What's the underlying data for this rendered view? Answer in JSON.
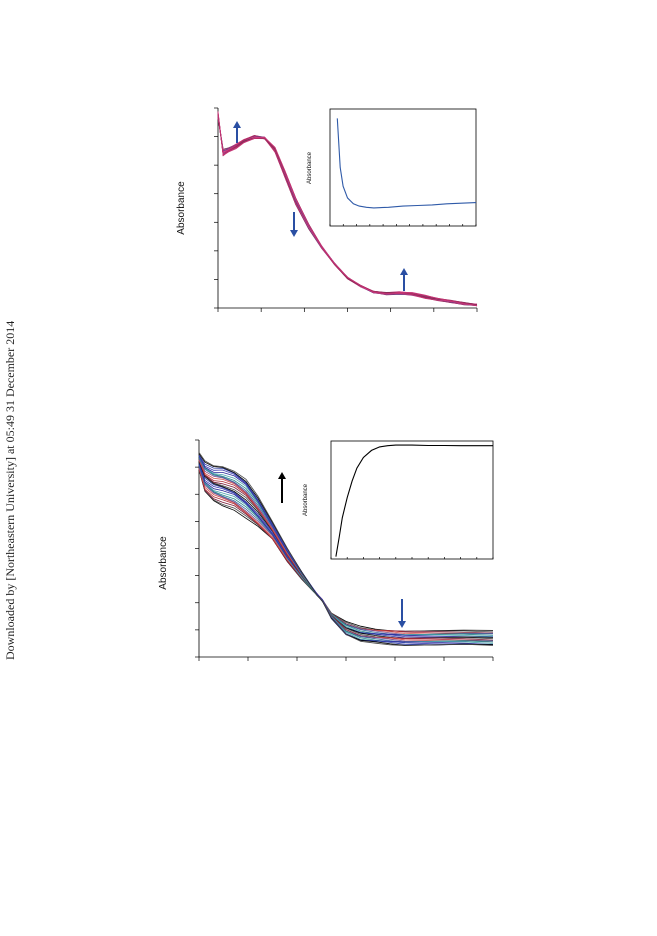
{
  "watermark": "Downloaded by [Northeastern University] at 05:49 31 December 2014",
  "colors": {
    "axis": "#000000",
    "arrow_blue": "#2a4fa3",
    "arrow_black": "#000000",
    "top_family": [
      "#7a2a52",
      "#9b2d5e",
      "#b52f6a",
      "#c83474",
      "#d2397c",
      "#8a3f86",
      "#6a4a9a",
      "#e0408a"
    ],
    "top_inset": "#2f5aa8",
    "bottom_family": [
      "#000000",
      "#4a4a4a",
      "#7b1f3a",
      "#b0303a",
      "#d4504a",
      "#7a4a8a",
      "#3a6aa0",
      "#2a8a8a",
      "#4aa0b0",
      "#2a2a9a",
      "#3a3ab0",
      "#2a3aa0"
    ],
    "bottom_inset": "#000000"
  },
  "chart_data": [
    {
      "id": "top-main",
      "type": "line",
      "title": "",
      "xlabel": "",
      "ylabel": "Absorbance",
      "xlim": [
        0,
        1
      ],
      "ylim": [
        0,
        1
      ],
      "grid": false,
      "series_count": 20,
      "x": [
        0,
        0.02,
        0.04,
        0.07,
        0.1,
        0.14,
        0.18,
        0.22,
        0.26,
        0.3,
        0.35,
        0.4,
        0.45,
        0.5,
        0.55,
        0.6,
        0.65,
        0.7,
        0.75,
        0.8,
        0.85,
        0.9,
        0.95,
        1.0
      ],
      "y_first": [
        0.95,
        0.79,
        0.8,
        0.82,
        0.84,
        0.86,
        0.85,
        0.78,
        0.65,
        0.52,
        0.4,
        0.3,
        0.22,
        0.15,
        0.11,
        0.08,
        0.07,
        0.07,
        0.065,
        0.05,
        0.04,
        0.03,
        0.02,
        0.015
      ],
      "y_last": [
        0.98,
        0.76,
        0.78,
        0.8,
        0.83,
        0.85,
        0.85,
        0.8,
        0.68,
        0.55,
        0.42,
        0.31,
        0.22,
        0.15,
        0.11,
        0.08,
        0.075,
        0.08,
        0.075,
        0.06,
        0.045,
        0.035,
        0.025,
        0.015
      ],
      "annotations": [
        {
          "kind": "arrow",
          "direction": "up",
          "near_x": 0.08
        },
        {
          "kind": "arrow",
          "direction": "down",
          "near_x": 0.3
        },
        {
          "kind": "arrow",
          "direction": "up",
          "near_x": 0.72
        }
      ]
    },
    {
      "id": "top-inset",
      "type": "line",
      "title": "",
      "xlabel": "",
      "ylabel": "Absorbance",
      "xlim": [
        0,
        1
      ],
      "ylim": [
        0,
        1
      ],
      "grid": false,
      "x": [
        0.05,
        0.07,
        0.09,
        0.12,
        0.16,
        0.2,
        0.25,
        0.3,
        0.4,
        0.5,
        0.6,
        0.7,
        0.8,
        0.9,
        1.0
      ],
      "values": [
        0.92,
        0.5,
        0.34,
        0.24,
        0.19,
        0.17,
        0.16,
        0.155,
        0.16,
        0.17,
        0.175,
        0.18,
        0.19,
        0.195,
        0.2
      ]
    },
    {
      "id": "bottom-main",
      "type": "line",
      "title": "",
      "xlabel": "",
      "ylabel": "Absorbance",
      "xlim": [
        0,
        1
      ],
      "ylim": [
        0,
        1
      ],
      "grid": false,
      "series_count": 26,
      "x": [
        0,
        0.02,
        0.05,
        0.08,
        0.12,
        0.16,
        0.2,
        0.25,
        0.3,
        0.35,
        0.4,
        0.42,
        0.45,
        0.5,
        0.55,
        0.6,
        0.65,
        0.7,
        0.8,
        0.9,
        1.0
      ],
      "y_first": [
        0.86,
        0.76,
        0.72,
        0.7,
        0.68,
        0.64,
        0.6,
        0.54,
        0.44,
        0.36,
        0.29,
        0.26,
        0.2,
        0.16,
        0.14,
        0.13,
        0.125,
        0.12,
        0.12,
        0.12,
        0.12
      ],
      "y_last": [
        0.94,
        0.9,
        0.88,
        0.88,
        0.86,
        0.82,
        0.74,
        0.62,
        0.5,
        0.39,
        0.29,
        0.26,
        0.18,
        0.1,
        0.07,
        0.065,
        0.06,
        0.055,
        0.055,
        0.055,
        0.05
      ],
      "annotations": [
        {
          "kind": "arrow",
          "direction": "up",
          "near_x": 0.28
        },
        {
          "kind": "arrow",
          "direction": "down",
          "near_x": 0.68
        }
      ]
    },
    {
      "id": "bottom-inset",
      "type": "line",
      "title": "",
      "xlabel": "",
      "ylabel": "Absorbance",
      "xlim": [
        0,
        1
      ],
      "ylim": [
        0,
        1
      ],
      "grid": false,
      "x": [
        0.03,
        0.05,
        0.07,
        0.1,
        0.13,
        0.16,
        0.2,
        0.25,
        0.3,
        0.35,
        0.4,
        0.5,
        0.6,
        0.7,
        0.8,
        0.9,
        1.0
      ],
      "values": [
        0.02,
        0.18,
        0.35,
        0.52,
        0.66,
        0.77,
        0.86,
        0.92,
        0.95,
        0.96,
        0.965,
        0.965,
        0.962,
        0.962,
        0.96,
        0.96,
        0.96
      ]
    }
  ]
}
